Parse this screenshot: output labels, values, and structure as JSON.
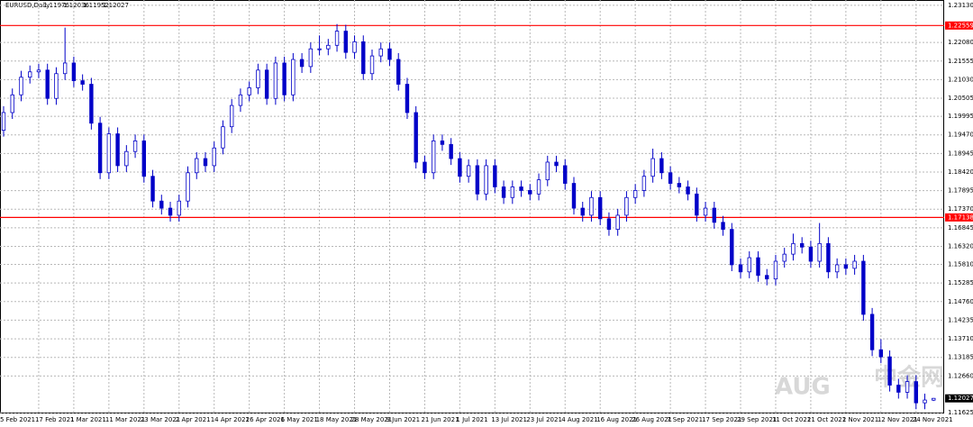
{
  "chart_data": {
    "type": "candlestick",
    "title": "EURUSD,Daily",
    "categories": [
      "5 Feb 2021",
      null,
      null,
      null,
      "17 Feb 2021",
      null,
      null,
      null,
      "1 Mar 2021",
      null,
      null,
      null,
      "11 Mar 2021",
      null,
      null,
      null,
      "23 Mar 2021",
      null,
      null,
      null,
      "2 Apr 2021",
      null,
      null,
      null,
      "14 Apr 2021",
      null,
      null,
      null,
      "26 Apr 2021",
      null,
      null,
      null,
      "6 May 2021",
      null,
      null,
      null,
      "18 May 2021",
      null,
      null,
      null,
      "28 May 2021",
      null,
      null,
      null,
      "9 Jun 2021",
      null,
      null,
      null,
      "21 Jun 2021",
      null,
      null,
      null,
      "1 Jul 2021",
      null,
      null,
      null,
      "13 Jul 2021",
      null,
      null,
      null,
      "23 Jul 2021",
      null,
      null,
      null,
      "4 Aug 2021",
      null,
      null,
      null,
      "16 Aug 2021",
      null,
      null,
      null,
      "26 Aug 2021",
      null,
      null,
      null,
      "7 Sep 2021",
      null,
      null,
      null,
      "17 Sep 2021",
      null,
      null,
      null,
      "29 Sep 2021",
      null,
      null,
      null,
      "11 Oct 2021",
      null,
      null,
      null,
      "21 Oct 2021",
      null,
      null,
      null,
      "2 Nov 2021",
      null,
      null,
      null,
      "12 Nov 2021",
      null,
      null,
      null,
      "24 Nov 2021",
      null,
      null
    ],
    "open": [
      1.196,
      1.201,
      1.206,
      1.211,
      1.2125,
      1.213,
      1.205,
      1.212,
      1.215,
      1.21,
      1.209,
      1.198,
      1.184,
      1.195,
      1.186,
      1.19,
      1.193,
      1.183,
      1.176,
      1.174,
      1.172,
      1.176,
      1.184,
      1.188,
      1.186,
      1.191,
      1.197,
      1.203,
      1.206,
      1.208,
      1.213,
      1.205,
      1.215,
      1.206,
      1.216,
      1.214,
      1.219,
      1.219,
      1.22,
      1.224,
      1.218,
      1.221,
      1.212,
      1.217,
      1.219,
      1.216,
      1.209,
      1.201,
      1.187,
      1.184,
      1.193,
      1.192,
      1.188,
      1.183,
      1.186,
      1.178,
      1.186,
      1.18,
      1.177,
      1.18,
      1.179,
      1.178,
      1.182,
      1.187,
      1.186,
      1.181,
      1.174,
      1.172,
      1.177,
      1.171,
      1.168,
      1.172,
      1.177,
      1.179,
      1.183,
      1.188,
      1.184,
      1.181,
      1.18,
      1.178,
      1.172,
      1.174,
      1.17,
      1.168,
      1.158,
      1.156,
      1.16,
      1.155,
      1.154,
      1.159,
      1.161,
      1.164,
      1.163,
      1.159,
      1.164,
      1.156,
      1.158,
      1.157,
      1.159,
      1.144,
      1.134,
      1.132,
      1.124,
      1.122,
      1.125,
      1.119,
      1.11976
    ],
    "high": [
      1.2028,
      1.2078,
      1.2128,
      1.2143,
      1.2148,
      1.2148,
      1.2138,
      1.225,
      1.2168,
      1.2118,
      1.2108,
      1.1998,
      1.1968,
      1.1968,
      1.1918,
      1.1948,
      1.1948,
      1.1848,
      1.1778,
      1.1758,
      1.1778,
      1.1858,
      1.1898,
      1.1898,
      1.1928,
      1.1988,
      1.2048,
      1.2078,
      1.2098,
      1.2148,
      1.2148,
      1.2168,
      1.2168,
      1.2178,
      1.2178,
      1.2208,
      1.2228,
      1.2218,
      1.226,
      1.2258,
      1.2228,
      1.2228,
      1.2188,
      1.2208,
      1.2208,
      1.2178,
      1.2108,
      1.2028,
      1.1888,
      1.1948,
      1.1948,
      1.1938,
      1.1898,
      1.1878,
      1.1878,
      1.1878,
      1.1878,
      1.1818,
      1.1818,
      1.1818,
      1.1808,
      1.1838,
      1.1888,
      1.1888,
      1.1878,
      1.1828,
      1.1758,
      1.1788,
      1.1788,
      1.1728,
      1.1738,
      1.1788,
      1.1808,
      1.1848,
      1.1908,
      1.1898,
      1.1858,
      1.1828,
      1.1818,
      1.1798,
      1.1758,
      1.1758,
      1.1718,
      1.1698,
      1.1598,
      1.1618,
      1.1618,
      1.1568,
      1.1608,
      1.1628,
      1.1668,
      1.1658,
      1.1648,
      1.1698,
      1.1658,
      1.1598,
      1.1598,
      1.1608,
      1.1608,
      1.1458,
      1.137,
      1.1338,
      1.1258,
      1.1268,
      1.1268,
      1.1216,
      1.12036
    ],
    "low": [
      1.1942,
      1.1992,
      1.2042,
      1.2092,
      1.2107,
      1.2032,
      1.2032,
      1.2102,
      1.2082,
      1.2072,
      1.1962,
      1.1822,
      1.1822,
      1.1842,
      1.1842,
      1.1882,
      1.1812,
      1.1742,
      1.1722,
      1.1702,
      1.1702,
      1.1742,
      1.1822,
      1.1842,
      1.1842,
      1.1892,
      1.1952,
      1.2012,
      1.2042,
      1.2062,
      1.2032,
      1.2032,
      1.2042,
      1.2042,
      1.2122,
      1.2122,
      1.2172,
      1.2172,
      1.2182,
      1.2162,
      1.2162,
      1.2102,
      1.2102,
      1.2152,
      1.2142,
      1.2072,
      1.1992,
      1.1852,
      1.1822,
      1.1822,
      1.1902,
      1.1862,
      1.1812,
      1.1812,
      1.1762,
      1.1762,
      1.1782,
      1.1752,
      1.1752,
      1.1772,
      1.1762,
      1.1762,
      1.1802,
      1.1842,
      1.1792,
      1.1722,
      1.1702,
      1.1702,
      1.1692,
      1.1662,
      1.1662,
      1.1702,
      1.1752,
      1.1772,
      1.1812,
      1.1822,
      1.1792,
      1.1782,
      1.1762,
      1.1702,
      1.1702,
      1.1682,
      1.1662,
      1.1562,
      1.1542,
      1.1542,
      1.1532,
      1.1522,
      1.1522,
      1.1572,
      1.1592,
      1.1612,
      1.1572,
      1.1572,
      1.1542,
      1.1542,
      1.1552,
      1.1552,
      1.1422,
      1.1322,
      1.1302,
      1.1222,
      1.1202,
      1.1202,
      1.1172,
      1.1172,
      1.11952
    ],
    "close": [
      1.201,
      1.206,
      1.211,
      1.2125,
      1.213,
      1.205,
      1.212,
      1.215,
      1.21,
      1.209,
      1.198,
      1.184,
      1.195,
      1.186,
      1.19,
      1.193,
      1.183,
      1.176,
      1.174,
      1.172,
      1.176,
      1.184,
      1.188,
      1.186,
      1.191,
      1.197,
      1.203,
      1.206,
      1.208,
      1.213,
      1.205,
      1.215,
      1.206,
      1.216,
      1.214,
      1.219,
      1.219,
      1.22,
      1.224,
      1.218,
      1.221,
      1.212,
      1.217,
      1.219,
      1.216,
      1.209,
      1.201,
      1.187,
      1.184,
      1.193,
      1.192,
      1.188,
      1.183,
      1.186,
      1.178,
      1.186,
      1.18,
      1.177,
      1.18,
      1.179,
      1.178,
      1.182,
      1.187,
      1.186,
      1.181,
      1.174,
      1.172,
      1.177,
      1.171,
      1.168,
      1.172,
      1.177,
      1.179,
      1.183,
      1.188,
      1.184,
      1.181,
      1.18,
      1.178,
      1.172,
      1.174,
      1.17,
      1.168,
      1.158,
      1.156,
      1.16,
      1.155,
      1.154,
      1.159,
      1.161,
      1.164,
      1.163,
      1.159,
      1.164,
      1.156,
      1.158,
      1.157,
      1.159,
      1.144,
      1.134,
      1.132,
      1.124,
      1.122,
      1.125,
      1.119,
      1.1198,
      1.12027
    ],
    "color": "#0000c8",
    "ylim": [
      1.11625,
      1.2328
    ],
    "yticks": [
      {
        "value": 1.2313,
        "label": "1.23130"
      },
      {
        "value": 1.2208,
        "label": "1.22080"
      },
      1.21555,
      {
        "value": 1.2103,
        "label": "1.21030"
      },
      1.20505,
      1.19995,
      {
        "value": 1.1947,
        "label": "1.19470"
      },
      1.18945,
      {
        "value": 1.1842,
        "label": "1.18420"
      },
      1.17895,
      {
        "value": 1.1737,
        "label": "1.17370"
      },
      1.16845,
      {
        "value": 1.1632,
        "label": "1.16320"
      },
      {
        "value": 1.1581,
        "label": "1.15810"
      },
      1.15285,
      {
        "value": 1.1476,
        "label": "1.14760"
      },
      1.14235,
      {
        "value": 1.1371,
        "label": "1.13710"
      },
      1.13185,
      {
        "value": 1.1266,
        "label": "1.12660"
      },
      1.11625
    ],
    "hlines": [
      1.22559,
      1.17138
    ],
    "hline_color": "#ff0000",
    "grid": true,
    "watermark": [
      "AUG",
      "中金网"
    ]
  }
}
